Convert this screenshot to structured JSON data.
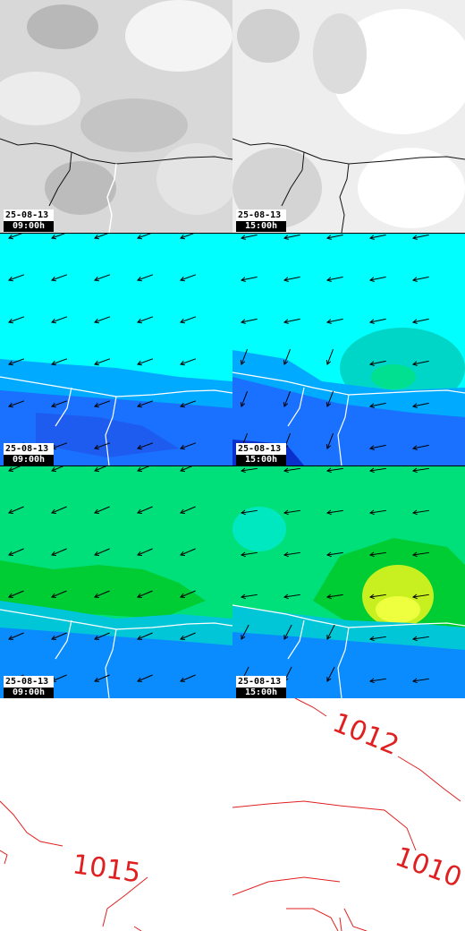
{
  "colors": {
    "coast": "#ffffff",
    "coast_cloud": "#111111",
    "wind_sky": "#00ffff",
    "wind_low": "#0a8cff",
    "wind_mid": "#00cc44",
    "wind_high": "#e6ff3a",
    "isobar": "#e02020",
    "arrow": "#000000"
  },
  "panels": [
    {
      "row": "cloud",
      "col": "left",
      "date": "25-08-13",
      "time": "09:00h"
    },
    {
      "row": "cloud",
      "col": "right",
      "date": "25-08-13",
      "time": "15:00h"
    },
    {
      "row": "wind10",
      "col": "left",
      "date": "25-08-13",
      "time": "09:00h"
    },
    {
      "row": "wind10",
      "col": "right",
      "date": "25-08-13",
      "time": "15:00h"
    },
    {
      "row": "gust",
      "col": "left",
      "date": "25-08-13",
      "time": "09:00h"
    },
    {
      "row": "gust",
      "col": "right",
      "date": "25-08-13",
      "time": "15:00h"
    }
  ],
  "isobars": {
    "left": [
      "1015"
    ],
    "right": [
      "1012",
      "1010"
    ]
  }
}
